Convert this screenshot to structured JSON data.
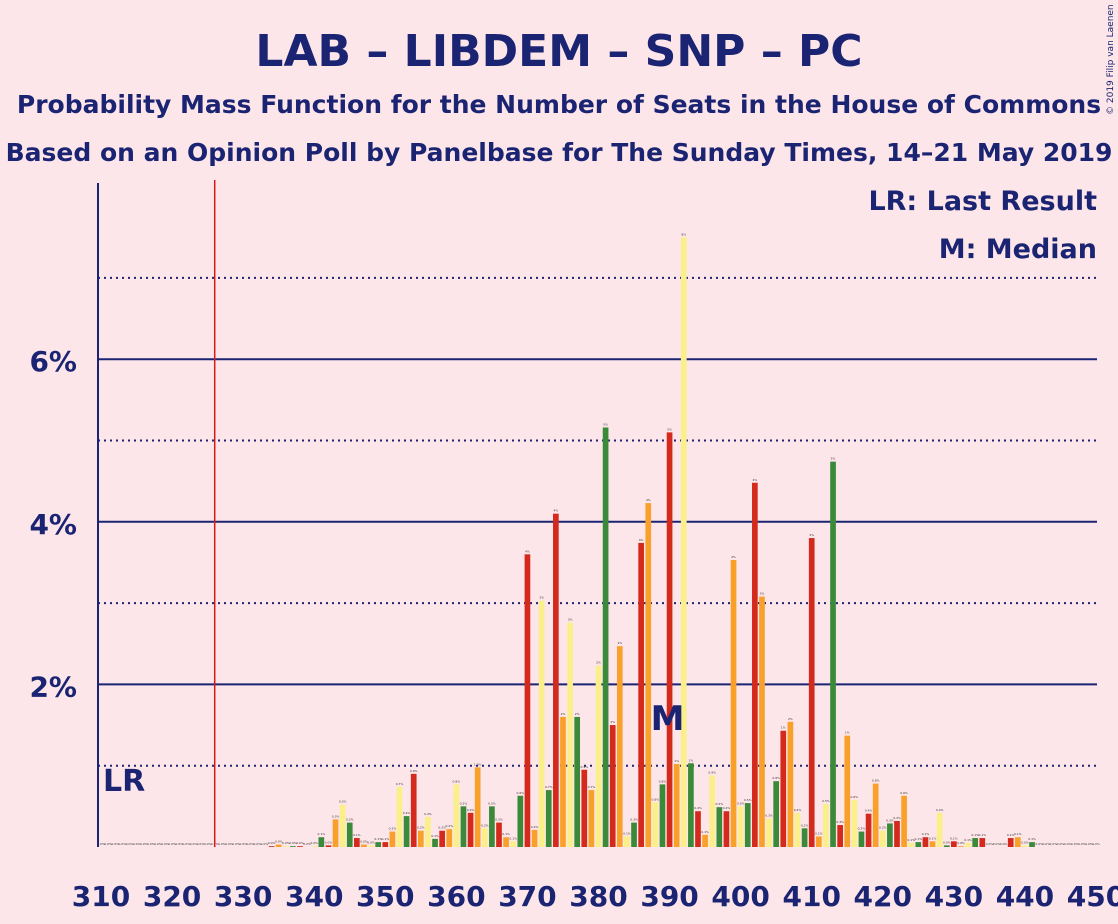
{
  "colors": {
    "background": "#fde6e9",
    "text": "#1a2472",
    "axis": "#1a2472",
    "last_result": "#d61a1a",
    "bar_colors": [
      "#d42a1e",
      "#f9a02a",
      "#fbef8a",
      "#3a8a3a"
    ]
  },
  "copyright": "© 2019 Filip van Laenen",
  "chart_data": {
    "type": "bar",
    "title": "LAB – LIBDEM – SNP – PC",
    "subtitle": "Probability Mass Function for the Number of Seats in the House of Commons",
    "source": "Based on an Opinion Poll by Panelbase for The Sunday Times, 14–21 May 2019",
    "xlabel": "",
    "ylabel": "",
    "xlim": [
      310,
      450
    ],
    "ylim": [
      0,
      8
    ],
    "x_ticks": [
      "310",
      "320",
      "330",
      "340",
      "350",
      "360",
      "370",
      "380",
      "390",
      "400",
      "410",
      "420",
      "430",
      "440",
      "450"
    ],
    "y_ticks": [
      {
        "value": 2,
        "label": "2%"
      },
      {
        "value": 4,
        "label": "4%"
      },
      {
        "value": 6,
        "label": "6%"
      }
    ],
    "dotted_gridlines": [
      1,
      3,
      5,
      7
    ],
    "last_result": {
      "seats": 326,
      "label": "LR"
    },
    "median": {
      "seats": 390,
      "label": "M"
    },
    "legend": [
      "LR: Last Result",
      "M: Median"
    ],
    "legend_position": "top-right",
    "bars": [
      {
        "x": 310,
        "v": 0
      },
      {
        "x": 311,
        "v": 0
      },
      {
        "x": 312,
        "v": 0
      },
      {
        "x": 313,
        "v": 0
      },
      {
        "x": 314,
        "v": 0
      },
      {
        "x": 315,
        "v": 0
      },
      {
        "x": 316,
        "v": 0
      },
      {
        "x": 317,
        "v": 0
      },
      {
        "x": 318,
        "v": 0
      },
      {
        "x": 319,
        "v": 0
      },
      {
        "x": 320,
        "v": 0
      },
      {
        "x": 321,
        "v": 0
      },
      {
        "x": 322,
        "v": 0
      },
      {
        "x": 323,
        "v": 0
      },
      {
        "x": 324,
        "v": 0
      },
      {
        "x": 325,
        "v": 0
      },
      {
        "x": 326,
        "v": 0
      },
      {
        "x": 327,
        "v": 0
      },
      {
        "x": 328,
        "v": 0
      },
      {
        "x": 329,
        "v": 0
      },
      {
        "x": 330,
        "v": 0
      },
      {
        "x": 331,
        "v": 0
      },
      {
        "x": 332,
        "v": 0
      },
      {
        "x": 333,
        "v": 0
      },
      {
        "x": 334,
        "v": 0.01
      },
      {
        "x": 335,
        "v": 0.03
      },
      {
        "x": 336,
        "v": 0.01
      },
      {
        "x": 337,
        "v": 0.01
      },
      {
        "x": 338,
        "v": 0.01
      },
      {
        "x": 339,
        "v": 0
      },
      {
        "x": 340,
        "v": 0.01
      },
      {
        "x": 341,
        "v": 0.12
      },
      {
        "x": 342,
        "v": 0.02
      },
      {
        "x": 343,
        "v": 0.34
      },
      {
        "x": 344,
        "v": 0.52
      },
      {
        "x": 345,
        "v": 0.3
      },
      {
        "x": 346,
        "v": 0.11
      },
      {
        "x": 347,
        "v": 0.03
      },
      {
        "x": 348,
        "v": 0.02
      },
      {
        "x": 349,
        "v": 0.06
      },
      {
        "x": 350,
        "v": 0.06
      },
      {
        "x": 351,
        "v": 0.19
      },
      {
        "x": 352,
        "v": 0.74
      },
      {
        "x": 353,
        "v": 0.38
      },
      {
        "x": 354,
        "v": 0.9
      },
      {
        "x": 355,
        "v": 0.2
      },
      {
        "x": 356,
        "v": 0.37
      },
      {
        "x": 357,
        "v": 0.1
      },
      {
        "x": 358,
        "v": 0.2
      },
      {
        "x": 359,
        "v": 0.22
      },
      {
        "x": 360,
        "v": 0.77
      },
      {
        "x": 361,
        "v": 0.5
      },
      {
        "x": 362,
        "v": 0.42
      },
      {
        "x": 363,
        "v": 0.98
      },
      {
        "x": 364,
        "v": 0.23
      },
      {
        "x": 365,
        "v": 0.5
      },
      {
        "x": 366,
        "v": 0.3
      },
      {
        "x": 367,
        "v": 0.12
      },
      {
        "x": 368,
        "v": 0.07
      },
      {
        "x": 369,
        "v": 0.63
      },
      {
        "x": 370,
        "v": 3.6
      },
      {
        "x": 371,
        "v": 0.21
      },
      {
        "x": 372,
        "v": 3.03
      },
      {
        "x": 373,
        "v": 0.7
      },
      {
        "x": 374,
        "v": 4.1
      },
      {
        "x": 375,
        "v": 1.6
      },
      {
        "x": 376,
        "v": 2.76
      },
      {
        "x": 377,
        "v": 1.6
      },
      {
        "x": 378,
        "v": 0.95
      },
      {
        "x": 379,
        "v": 0.7
      },
      {
        "x": 380,
        "v": 2.23
      },
      {
        "x": 381,
        "v": 5.16
      },
      {
        "x": 382,
        "v": 1.5
      },
      {
        "x": 383,
        "v": 2.47
      },
      {
        "x": 384,
        "v": 0.13
      },
      {
        "x": 385,
        "v": 0.3
      },
      {
        "x": 386,
        "v": 3.74
      },
      {
        "x": 387,
        "v": 4.23
      },
      {
        "x": 388,
        "v": 0.55
      },
      {
        "x": 389,
        "v": 0.77
      },
      {
        "x": 390,
        "v": 5.1
      },
      {
        "x": 391,
        "v": 1.02
      },
      {
        "x": 392,
        "v": 7.5
      },
      {
        "x": 393,
        "v": 1.03
      },
      {
        "x": 394,
        "v": 0.44
      },
      {
        "x": 395,
        "v": 0.15
      },
      {
        "x": 396,
        "v": 0.88
      },
      {
        "x": 397,
        "v": 0.49
      },
      {
        "x": 398,
        "v": 0.44
      },
      {
        "x": 399,
        "v": 3.53
      },
      {
        "x": 400,
        "v": 0.5
      },
      {
        "x": 401,
        "v": 0.54
      },
      {
        "x": 402,
        "v": 4.48
      },
      {
        "x": 403,
        "v": 3.08
      },
      {
        "x": 404,
        "v": 0.35
      },
      {
        "x": 405,
        "v": 0.81
      },
      {
        "x": 406,
        "v": 1.43
      },
      {
        "x": 407,
        "v": 1.54
      },
      {
        "x": 408,
        "v": 0.42
      },
      {
        "x": 409,
        "v": 0.23
      },
      {
        "x": 410,
        "v": 3.8
      },
      {
        "x": 411,
        "v": 0.13
      },
      {
        "x": 412,
        "v": 0.53
      },
      {
        "x": 413,
        "v": 4.74
      },
      {
        "x": 414,
        "v": 0.27
      },
      {
        "x": 415,
        "v": 1.37
      },
      {
        "x": 416,
        "v": 0.58
      },
      {
        "x": 417,
        "v": 0.19
      },
      {
        "x": 418,
        "v": 0.41
      },
      {
        "x": 419,
        "v": 0.78
      },
      {
        "x": 420,
        "v": 0.2
      },
      {
        "x": 421,
        "v": 0.29
      },
      {
        "x": 422,
        "v": 0.32
      },
      {
        "x": 423,
        "v": 0.63
      },
      {
        "x": 424,
        "v": 0.05
      },
      {
        "x": 425,
        "v": 0.06
      },
      {
        "x": 426,
        "v": 0.12
      },
      {
        "x": 427,
        "v": 0.07
      },
      {
        "x": 428,
        "v": 0.42
      },
      {
        "x": 429,
        "v": 0.02
      },
      {
        "x": 430,
        "v": 0.07
      },
      {
        "x": 431,
        "v": 0.01
      },
      {
        "x": 432,
        "v": 0.05
      },
      {
        "x": 433,
        "v": 0.11
      },
      {
        "x": 434,
        "v": 0.11
      },
      {
        "x": 435,
        "v": 0
      },
      {
        "x": 436,
        "v": 0
      },
      {
        "x": 437,
        "v": 0
      },
      {
        "x": 438,
        "v": 0.11
      },
      {
        "x": 439,
        "v": 0.12
      },
      {
        "x": 440,
        "v": 0.02
      },
      {
        "x": 441,
        "v": 0.06
      },
      {
        "x": 442,
        "v": 0
      },
      {
        "x": 443,
        "v": 0
      },
      {
        "x": 444,
        "v": 0
      },
      {
        "x": 445,
        "v": 0
      },
      {
        "x": 446,
        "v": 0
      },
      {
        "x": 447,
        "v": 0
      },
      {
        "x": 448,
        "v": 0
      },
      {
        "x": 449,
        "v": 0
      },
      {
        "x": 450,
        "v": 0
      }
    ]
  }
}
